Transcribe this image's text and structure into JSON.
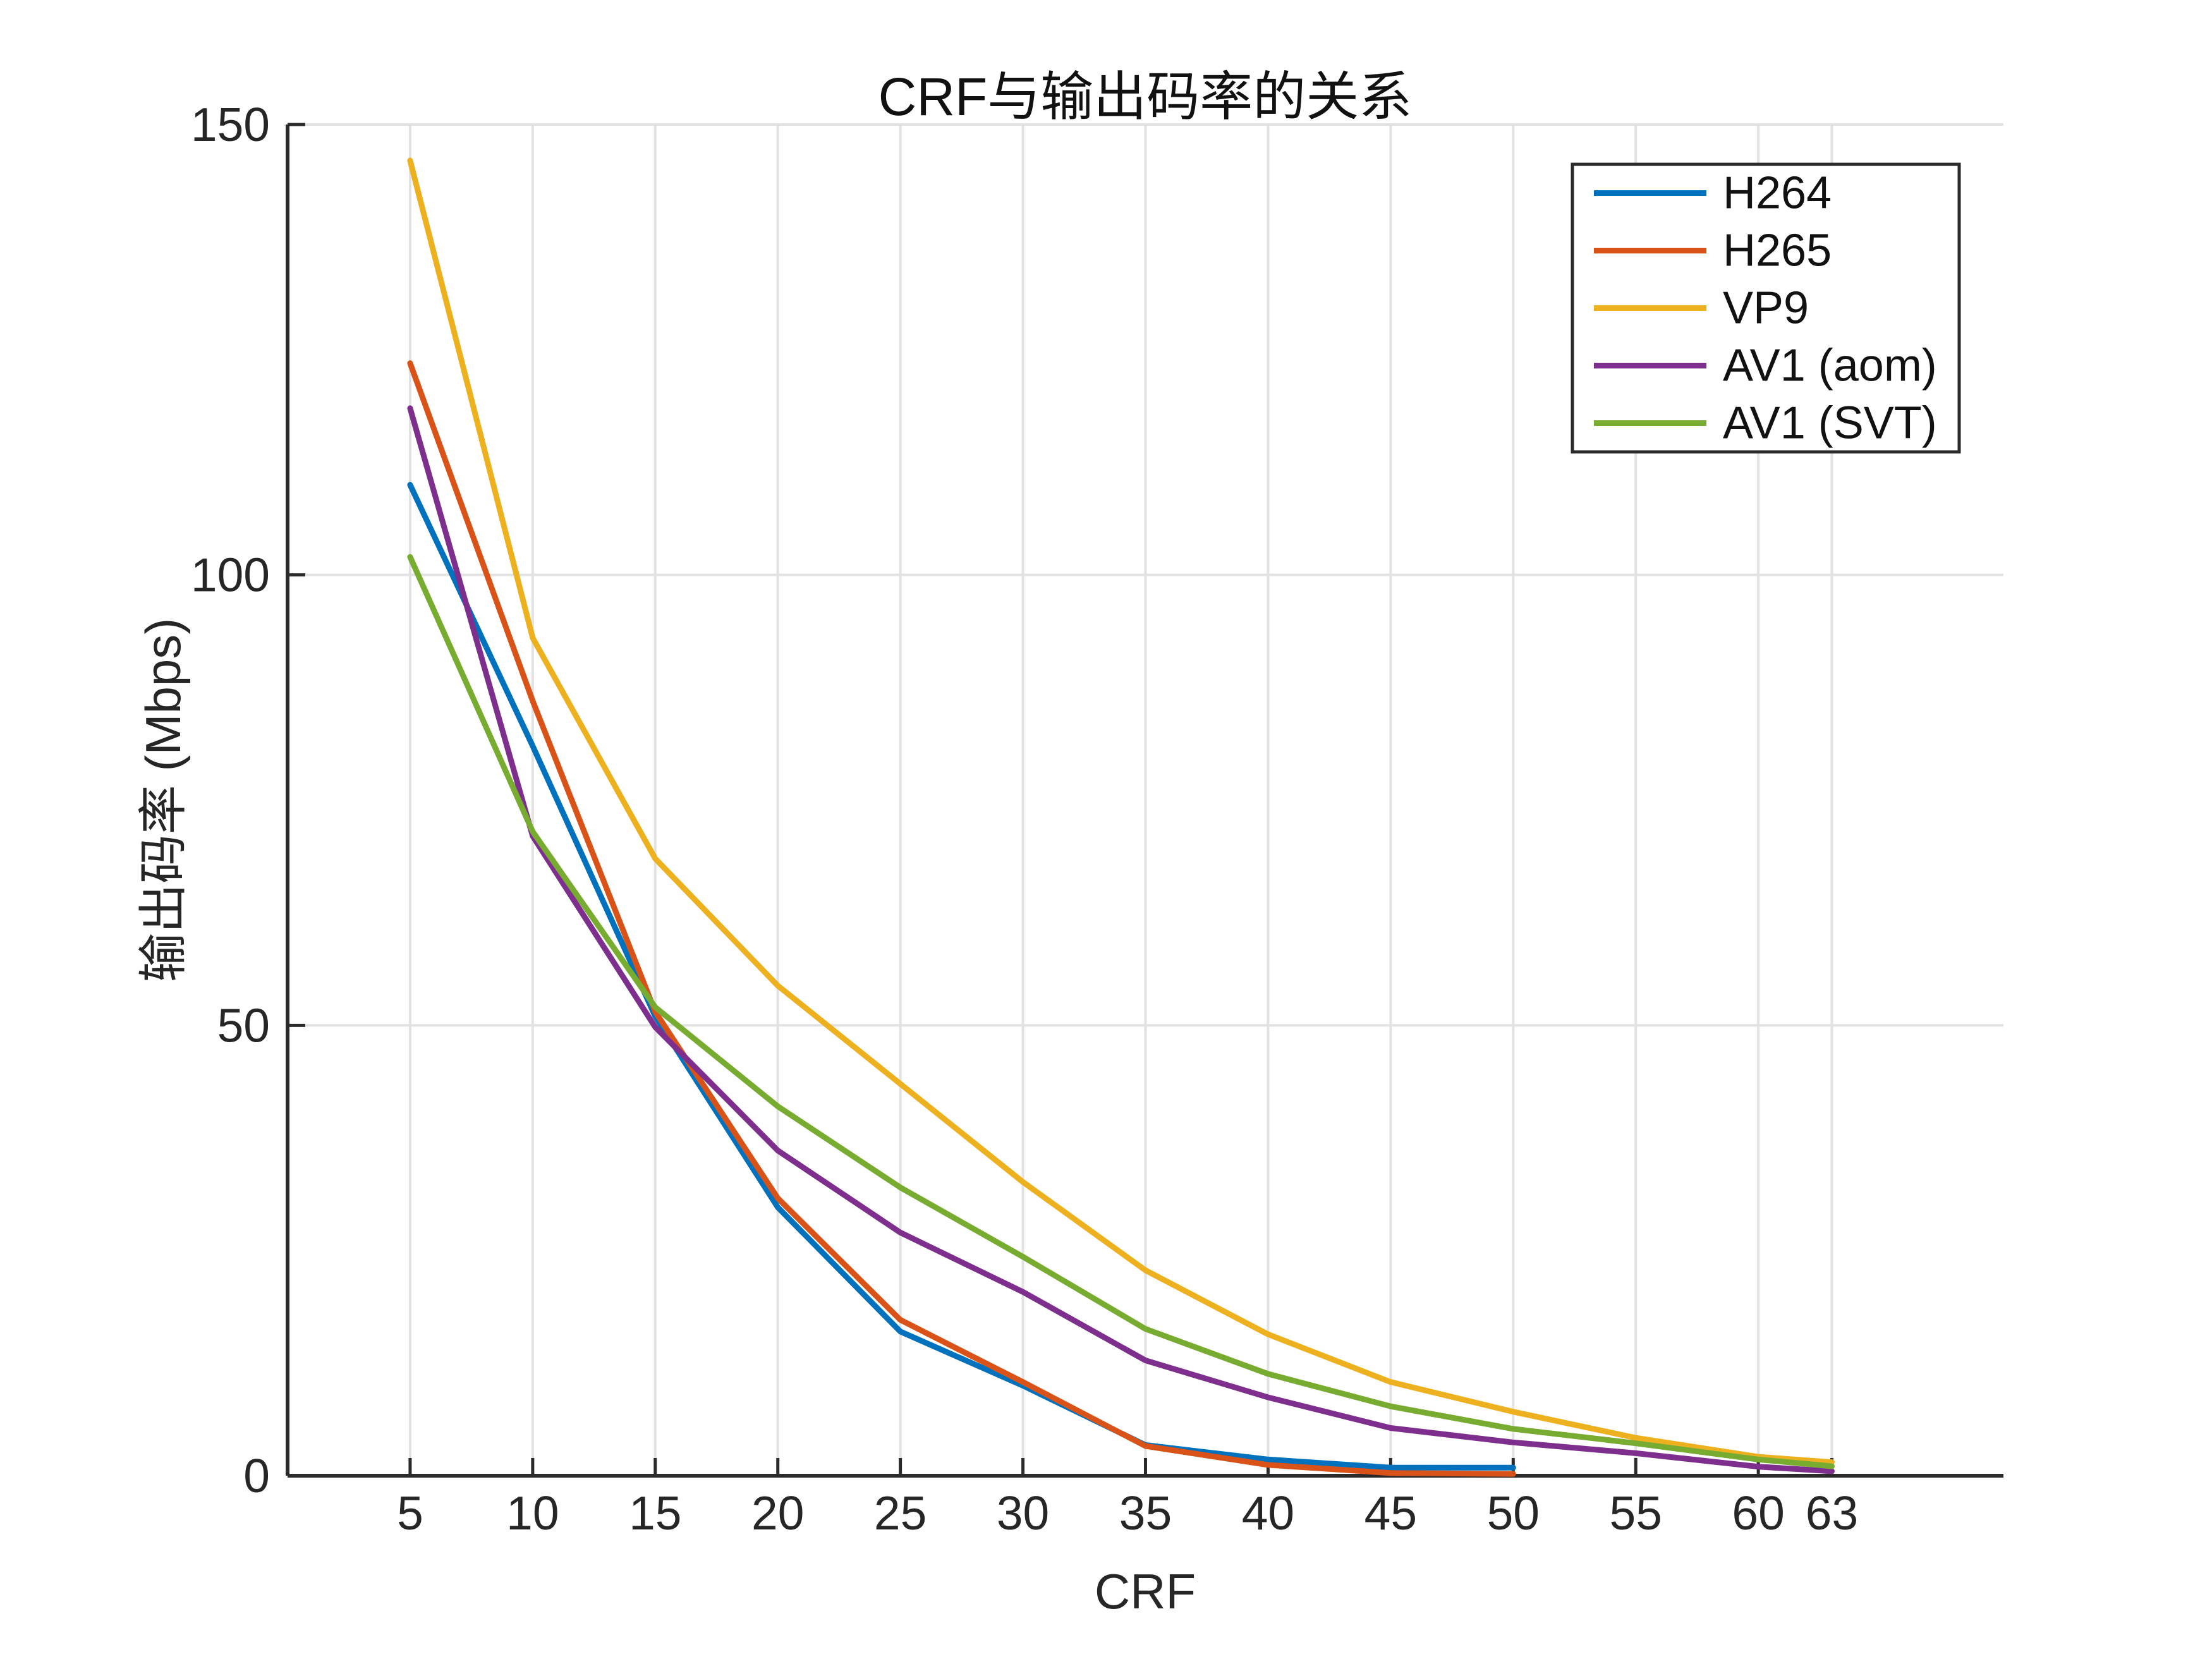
{
  "figure": {
    "background": "#ffffff",
    "grid_color": "#e2e2e2",
    "axis_color": "#2b2b2b",
    "text_color": "#262626"
  },
  "chart_data": {
    "type": "line",
    "title": "CRF与输出码率的关系",
    "xlabel": "CRF",
    "ylabel": "输出码率 (Mbps)",
    "xlim": [
      0,
      70
    ],
    "ylim": [
      0,
      150
    ],
    "x_ticks": [
      5,
      10,
      15,
      20,
      25,
      30,
      35,
      40,
      45,
      50,
      55,
      60,
      63
    ],
    "y_ticks": [
      0,
      50,
      100,
      150
    ],
    "grid": true,
    "legend_position": "upper right",
    "series": [
      {
        "name": "H264",
        "color": "#0072BD",
        "x": [
          5,
          10,
          15,
          20,
          25,
          30,
          35,
          40,
          45,
          50
        ],
        "y": [
          110,
          81,
          51,
          29.8,
          16,
          10,
          3.4,
          1.8,
          0.9,
          0.9
        ]
      },
      {
        "name": "H265",
        "color": "#D95319",
        "x": [
          5,
          10,
          15,
          20,
          25,
          30,
          35,
          40,
          45,
          50
        ],
        "y": [
          123.5,
          86,
          51.5,
          30.8,
          17.3,
          10.4,
          3.3,
          1.2,
          0.3,
          0.2
        ]
      },
      {
        "name": "VP9",
        "color": "#EDB120",
        "x": [
          5,
          10,
          15,
          20,
          25,
          30,
          35,
          40,
          45,
          50,
          55,
          60,
          63
        ],
        "y": [
          146,
          93,
          68.5,
          54.4,
          43.5,
          32.6,
          22.8,
          15.7,
          10.4,
          7.1,
          4.2,
          2.1,
          1.5
        ]
      },
      {
        "name": "AV1 (aom)",
        "color": "#7E2F8E",
        "x": [
          5,
          10,
          15,
          20,
          25,
          30,
          35,
          40,
          45,
          50,
          55,
          60,
          63
        ],
        "y": [
          118.5,
          71,
          49.8,
          36.1,
          27,
          20.4,
          12.8,
          8.7,
          5.3,
          3.7,
          2.5,
          1,
          0.5
        ]
      },
      {
        "name": "AV1 (SVT)",
        "color": "#77AC30",
        "x": [
          5,
          10,
          15,
          20,
          25,
          30,
          35,
          40,
          45,
          50,
          55,
          60,
          63
        ],
        "y": [
          102,
          71.5,
          52,
          41,
          32,
          24.3,
          16.3,
          11.3,
          7.7,
          5.2,
          3.6,
          1.8,
          1.05
        ]
      }
    ]
  }
}
